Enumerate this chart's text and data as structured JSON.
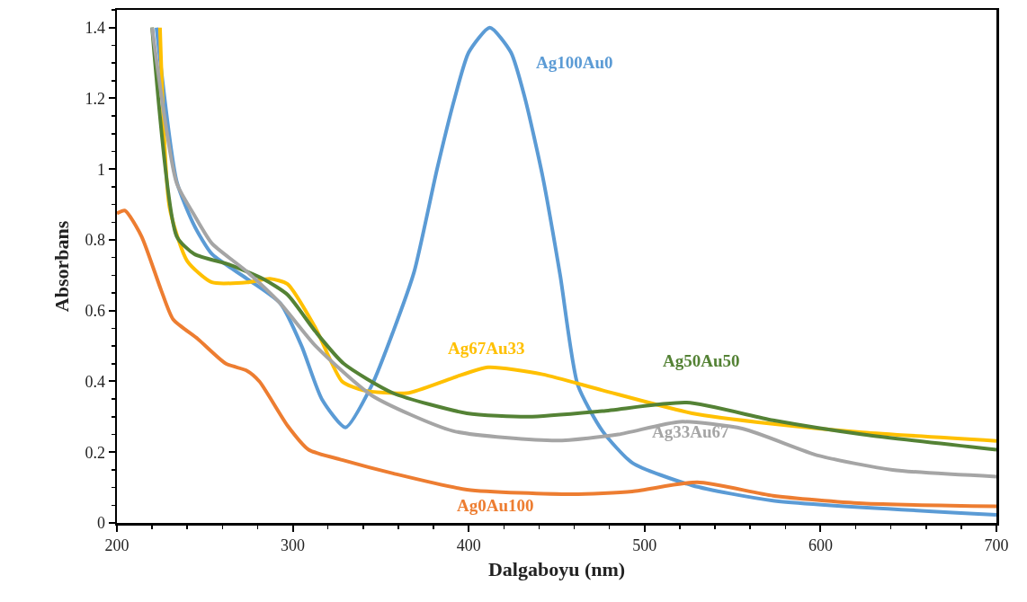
{
  "chart_data": {
    "type": "line",
    "xlabel": "Dalgaboyu (nm)",
    "ylabel": "Absorbans",
    "xlim": [
      200,
      700
    ],
    "ylim": [
      0,
      1.45
    ],
    "xticks": [
      200,
      300,
      400,
      500,
      600,
      700
    ],
    "yticks": [
      0,
      0.2,
      0.4,
      0.6,
      0.8,
      1,
      1.2,
      1.4
    ],
    "grid": false,
    "legend": false,
    "marker": "none",
    "line_style": "solid",
    "series": [
      {
        "name": "Ag100Au0",
        "color": "#5b9bd5",
        "x": [
          222.5,
          234,
          244,
          254,
          274,
          293,
          305,
          316.5,
          330,
          345,
          357,
          369,
          382,
          392,
          400,
          412,
          424,
          432,
          442,
          452,
          462,
          476,
          493,
          527,
          573,
          700
        ],
        "values": [
          1.4,
          0.965,
          0.84,
          0.76,
          0.69,
          0.62,
          0.5,
          0.35,
          0.27,
          0.39,
          0.54,
          0.71,
          1.0,
          1.2,
          1.33,
          1.4,
          1.33,
          1.2,
          0.98,
          0.7,
          0.39,
          0.26,
          0.17,
          0.106,
          0.063,
          0.023
        ]
      },
      {
        "name": "Ag67Au33",
        "color": "#ffc000",
        "x": [
          224.5,
          230,
          240,
          254,
          274,
          287,
          297,
          313,
          328,
          340,
          365,
          391,
          411,
          442,
          476,
          527,
          573,
          624,
          700
        ],
        "values": [
          1.4,
          0.89,
          0.74,
          0.68,
          0.68,
          0.69,
          0.675,
          0.55,
          0.4,
          0.375,
          0.367,
          0.41,
          0.44,
          0.42,
          0.375,
          0.31,
          0.28,
          0.256,
          0.232
        ]
      },
      {
        "name": "Ag50Au50",
        "color": "#548235",
        "x": [
          220,
          234,
          244,
          264,
          283,
          297,
          313,
          329,
          357,
          399,
          434,
          476,
          524,
          573,
          624,
          700
        ],
        "values": [
          1.4,
          0.81,
          0.76,
          0.73,
          0.69,
          0.645,
          0.54,
          0.45,
          0.367,
          0.31,
          0.3,
          0.316,
          0.34,
          0.29,
          0.25,
          0.207
        ]
      },
      {
        "name": "Ag33Au67",
        "color": "#a5a5a5",
        "x": [
          220,
          234,
          244,
          254,
          274,
          293,
          313,
          345,
          391,
          450,
          485,
          520,
          556,
          599,
          641,
          700
        ],
        "values": [
          1.4,
          0.96,
          0.87,
          0.79,
          0.71,
          0.62,
          0.5,
          0.36,
          0.26,
          0.233,
          0.25,
          0.286,
          0.266,
          0.19,
          0.15,
          0.131
        ]
      },
      {
        "name": "Ag0Au100",
        "color": "#ed7d31",
        "x": [
          200,
          204.6,
          214,
          225,
          232,
          246,
          262,
          274,
          281,
          297,
          309,
          328,
          357,
          399,
          459,
          493,
          530,
          573,
          624,
          700
        ],
        "values": [
          0.875,
          0.883,
          0.81,
          0.66,
          0.575,
          0.52,
          0.45,
          0.43,
          0.4,
          0.275,
          0.207,
          0.178,
          0.14,
          0.094,
          0.081,
          0.089,
          0.115,
          0.077,
          0.055,
          0.047
        ]
      }
    ]
  }
}
